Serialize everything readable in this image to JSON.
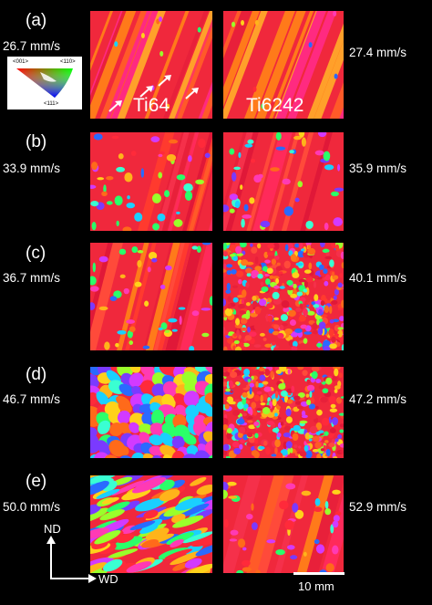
{
  "panels": [
    {
      "letter": "(a)",
      "left_speed": "26.7 mm/s",
      "right_speed": "27.4 mm/s"
    },
    {
      "letter": "(b)",
      "left_speed": "33.9 mm/s",
      "right_speed": "35.9 mm/s"
    },
    {
      "letter": "(c)",
      "left_speed": "36.7 mm/s",
      "right_speed": "40.1 mm/s"
    },
    {
      "letter": "(d)",
      "left_speed": "46.7 mm/s",
      "right_speed": "47.2 mm/s"
    },
    {
      "letter": "(e)",
      "left_speed": "50.0 mm/s",
      "right_speed": "52.9 mm/s"
    }
  ],
  "alloys": {
    "left": "Ti64",
    "right": "Ti6242"
  },
  "ipf_key": {
    "top_left": "<001>",
    "top_right": "<110>",
    "bottom": "<111>"
  },
  "axes": {
    "vertical": "ND",
    "horizontal": "WD"
  },
  "scale_bar": {
    "label": "10 mm"
  },
  "colors": {
    "background": "#000000",
    "text": "#ffffff",
    "dominant_grain": "#f0283c"
  }
}
